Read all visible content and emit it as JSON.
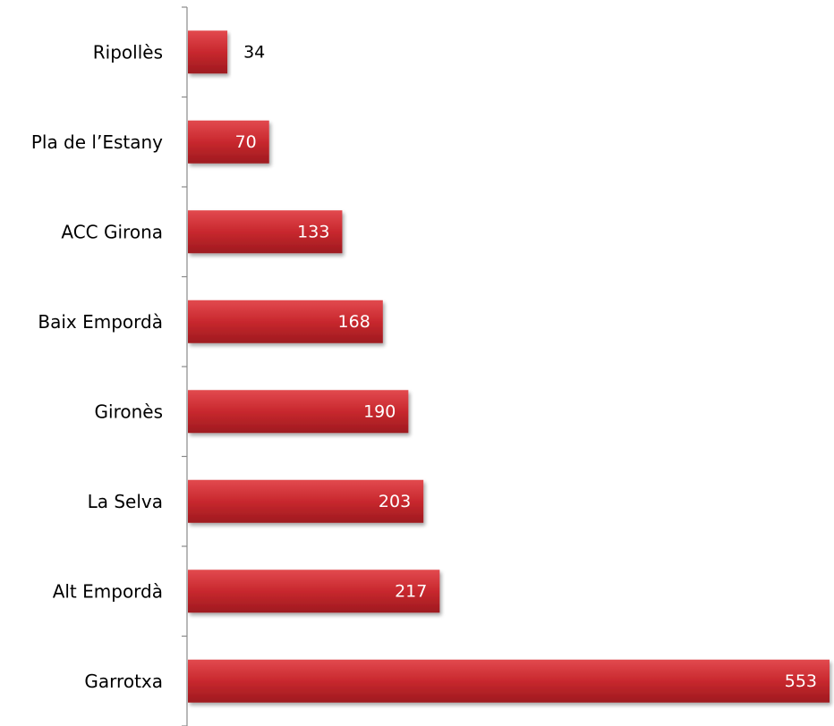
{
  "chart_data": {
    "type": "bar",
    "orientation": "horizontal",
    "categories": [
      "Ripollès",
      "Pla de l’Estany",
      "ACC Girona",
      "Baix Empordà",
      "Gironès",
      "La Selva",
      "Alt Empordà",
      "Garrotxa"
    ],
    "values": [
      34,
      70,
      133,
      168,
      190,
      203,
      217,
      553
    ],
    "title": "",
    "xlabel": "",
    "ylabel": "",
    "xlim": [
      0,
      560
    ],
    "grid": false,
    "legend": "none",
    "bar_color": "#c8282e",
    "bar_color_light": "#e24a4f",
    "bar_color_dark": "#9e1a1f",
    "inside_label_color": "#ffffff",
    "outside_label_color": "#000000",
    "axis_color": "#8a8a8a"
  }
}
